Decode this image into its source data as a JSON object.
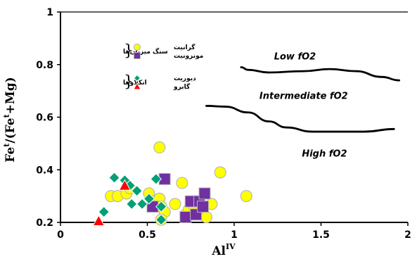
{
  "chart_data": {
    "type": "scatter",
    "xlabel": "Al",
    "xlabel_sup": "IV",
    "ylabel": "Fe",
    "ylabel_sup": "t",
    "ylabel_mid": "/(Fe",
    "ylabel_sup2": "t",
    "ylabel_end": "+Mg)",
    "xlim": [
      0,
      2
    ],
    "ylim": [
      0.2,
      1
    ],
    "x_ticks": [
      0,
      0.5,
      1,
      1.5,
      2
    ],
    "x_tick_labels": [
      "0",
      "0.5",
      "1",
      "1.5",
      "2"
    ],
    "y_ticks": [
      0.2,
      0.4,
      0.6,
      0.8,
      1
    ],
    "y_tick_labels": [
      "0.2",
      "0.4",
      "0.6",
      "0.8",
      "1"
    ],
    "grid": false,
    "legend": {
      "placement": "top-left",
      "groups": [
        {
          "label": "سنگ میزبان‌ها",
          "entries": [
            "گرانیت",
            "مونزونیت"
          ]
        },
        {
          "label": "انکلاوها",
          "entries": [
            "دیوریت",
            "گابرو"
          ]
        }
      ]
    },
    "annotations": [
      {
        "text": "Low fO2",
        "x": 1.35,
        "y": 0.82
      },
      {
        "text": "Intermediate fO2",
        "x": 1.4,
        "y": 0.67
      },
      {
        "text": "High fO2",
        "x": 1.52,
        "y": 0.45
      }
    ],
    "curves": [
      {
        "name": "low",
        "points": [
          [
            1.04,
            0.79
          ],
          [
            1.08,
            0.78
          ],
          [
            1.2,
            0.77
          ],
          [
            1.4,
            0.775
          ],
          [
            1.55,
            0.783
          ],
          [
            1.7,
            0.775
          ],
          [
            1.85,
            0.753
          ],
          [
            1.95,
            0.74
          ]
        ]
      },
      {
        "name": "high",
        "points": [
          [
            0.84,
            0.643
          ],
          [
            0.95,
            0.64
          ],
          [
            1.08,
            0.618
          ],
          [
            1.2,
            0.584
          ],
          [
            1.3,
            0.561
          ],
          [
            1.45,
            0.545
          ],
          [
            1.6,
            0.545
          ],
          [
            1.75,
            0.545
          ],
          [
            1.92,
            0.555
          ]
        ]
      }
    ],
    "series": [
      {
        "name": "گرانیت",
        "marker": "circle",
        "color": "#ffff00",
        "points": [
          [
            0.29,
            0.3
          ],
          [
            0.33,
            0.3
          ],
          [
            0.38,
            0.31
          ],
          [
            0.4,
            0.33
          ],
          [
            0.51,
            0.31
          ],
          [
            0.53,
            0.28
          ],
          [
            0.57,
            0.29
          ],
          [
            0.57,
            0.485
          ],
          [
            0.58,
            0.26
          ],
          [
            0.6,
            0.24
          ],
          [
            0.66,
            0.27
          ],
          [
            0.7,
            0.35
          ],
          [
            0.72,
            0.23
          ],
          [
            0.74,
            0.25
          ],
          [
            0.77,
            0.26
          ],
          [
            0.84,
            0.22
          ],
          [
            0.87,
            0.27
          ],
          [
            0.92,
            0.39
          ],
          [
            1.07,
            0.3
          ],
          [
            0.58,
            0.21
          ]
        ]
      },
      {
        "name": "مونزونیت",
        "marker": "square",
        "color": "#7030a0",
        "points": [
          [
            0.53,
            0.26
          ],
          [
            0.6,
            0.365
          ],
          [
            0.72,
            0.22
          ],
          [
            0.75,
            0.28
          ],
          [
            0.78,
            0.23
          ],
          [
            0.8,
            0.28
          ],
          [
            0.83,
            0.31
          ],
          [
            0.82,
            0.26
          ]
        ]
      },
      {
        "name": "دیوریت",
        "marker": "diamond",
        "color": "#00a076",
        "points": [
          [
            0.25,
            0.24
          ],
          [
            0.31,
            0.37
          ],
          [
            0.37,
            0.36
          ],
          [
            0.4,
            0.34
          ],
          [
            0.41,
            0.27
          ],
          [
            0.44,
            0.32
          ],
          [
            0.47,
            0.27
          ],
          [
            0.51,
            0.29
          ],
          [
            0.55,
            0.365
          ],
          [
            0.58,
            0.26
          ],
          [
            0.58,
            0.21
          ]
        ]
      },
      {
        "name": "گابرو",
        "marker": "triangle",
        "color": "#ff0000",
        "points": [
          [
            0.22,
            0.205
          ],
          [
            0.37,
            0.34
          ]
        ]
      }
    ]
  }
}
